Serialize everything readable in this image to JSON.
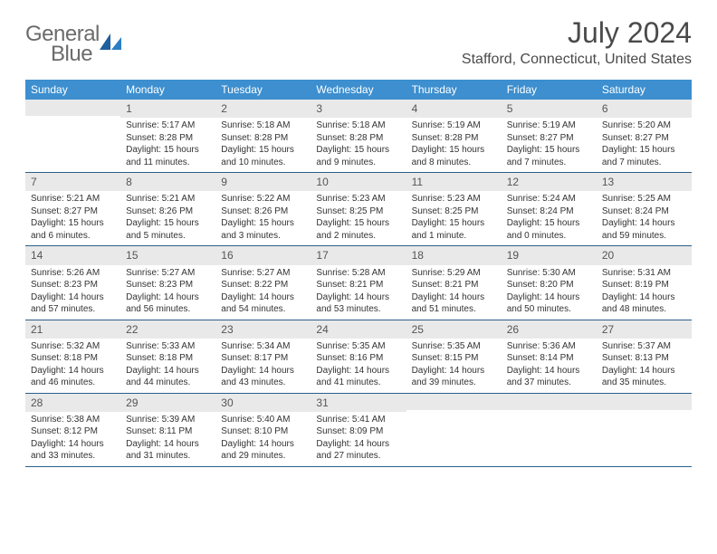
{
  "brand": {
    "part1": "General",
    "part2": "Blue"
  },
  "title": "July 2024",
  "location": "Stafford, Connecticut, United States",
  "colors": {
    "header_bg": "#3d8fcf",
    "daynum_bg": "#e9e9e9",
    "rule": "#2b5f8a",
    "text": "#333333",
    "logo_gray": "#6b6b6b",
    "logo_blue": "#2b7ec2"
  },
  "weekdays": [
    "Sunday",
    "Monday",
    "Tuesday",
    "Wednesday",
    "Thursday",
    "Friday",
    "Saturday"
  ],
  "start_offset": 1,
  "days": [
    {
      "n": "1",
      "sunrise": "5:17 AM",
      "sunset": "8:28 PM",
      "daylight": "15 hours and 11 minutes."
    },
    {
      "n": "2",
      "sunrise": "5:18 AM",
      "sunset": "8:28 PM",
      "daylight": "15 hours and 10 minutes."
    },
    {
      "n": "3",
      "sunrise": "5:18 AM",
      "sunset": "8:28 PM",
      "daylight": "15 hours and 9 minutes."
    },
    {
      "n": "4",
      "sunrise": "5:19 AM",
      "sunset": "8:28 PM",
      "daylight": "15 hours and 8 minutes."
    },
    {
      "n": "5",
      "sunrise": "5:19 AM",
      "sunset": "8:27 PM",
      "daylight": "15 hours and 7 minutes."
    },
    {
      "n": "6",
      "sunrise": "5:20 AM",
      "sunset": "8:27 PM",
      "daylight": "15 hours and 7 minutes."
    },
    {
      "n": "7",
      "sunrise": "5:21 AM",
      "sunset": "8:27 PM",
      "daylight": "15 hours and 6 minutes."
    },
    {
      "n": "8",
      "sunrise": "5:21 AM",
      "sunset": "8:26 PM",
      "daylight": "15 hours and 5 minutes."
    },
    {
      "n": "9",
      "sunrise": "5:22 AM",
      "sunset": "8:26 PM",
      "daylight": "15 hours and 3 minutes."
    },
    {
      "n": "10",
      "sunrise": "5:23 AM",
      "sunset": "8:25 PM",
      "daylight": "15 hours and 2 minutes."
    },
    {
      "n": "11",
      "sunrise": "5:23 AM",
      "sunset": "8:25 PM",
      "daylight": "15 hours and 1 minute."
    },
    {
      "n": "12",
      "sunrise": "5:24 AM",
      "sunset": "8:24 PM",
      "daylight": "15 hours and 0 minutes."
    },
    {
      "n": "13",
      "sunrise": "5:25 AM",
      "sunset": "8:24 PM",
      "daylight": "14 hours and 59 minutes."
    },
    {
      "n": "14",
      "sunrise": "5:26 AM",
      "sunset": "8:23 PM",
      "daylight": "14 hours and 57 minutes."
    },
    {
      "n": "15",
      "sunrise": "5:27 AM",
      "sunset": "8:23 PM",
      "daylight": "14 hours and 56 minutes."
    },
    {
      "n": "16",
      "sunrise": "5:27 AM",
      "sunset": "8:22 PM",
      "daylight": "14 hours and 54 minutes."
    },
    {
      "n": "17",
      "sunrise": "5:28 AM",
      "sunset": "8:21 PM",
      "daylight": "14 hours and 53 minutes."
    },
    {
      "n": "18",
      "sunrise": "5:29 AM",
      "sunset": "8:21 PM",
      "daylight": "14 hours and 51 minutes."
    },
    {
      "n": "19",
      "sunrise": "5:30 AM",
      "sunset": "8:20 PM",
      "daylight": "14 hours and 50 minutes."
    },
    {
      "n": "20",
      "sunrise": "5:31 AM",
      "sunset": "8:19 PM",
      "daylight": "14 hours and 48 minutes."
    },
    {
      "n": "21",
      "sunrise": "5:32 AM",
      "sunset": "8:18 PM",
      "daylight": "14 hours and 46 minutes."
    },
    {
      "n": "22",
      "sunrise": "5:33 AM",
      "sunset": "8:18 PM",
      "daylight": "14 hours and 44 minutes."
    },
    {
      "n": "23",
      "sunrise": "5:34 AM",
      "sunset": "8:17 PM",
      "daylight": "14 hours and 43 minutes."
    },
    {
      "n": "24",
      "sunrise": "5:35 AM",
      "sunset": "8:16 PM",
      "daylight": "14 hours and 41 minutes."
    },
    {
      "n": "25",
      "sunrise": "5:35 AM",
      "sunset": "8:15 PM",
      "daylight": "14 hours and 39 minutes."
    },
    {
      "n": "26",
      "sunrise": "5:36 AM",
      "sunset": "8:14 PM",
      "daylight": "14 hours and 37 minutes."
    },
    {
      "n": "27",
      "sunrise": "5:37 AM",
      "sunset": "8:13 PM",
      "daylight": "14 hours and 35 minutes."
    },
    {
      "n": "28",
      "sunrise": "5:38 AM",
      "sunset": "8:12 PM",
      "daylight": "14 hours and 33 minutes."
    },
    {
      "n": "29",
      "sunrise": "5:39 AM",
      "sunset": "8:11 PM",
      "daylight": "14 hours and 31 minutes."
    },
    {
      "n": "30",
      "sunrise": "5:40 AM",
      "sunset": "8:10 PM",
      "daylight": "14 hours and 29 minutes."
    },
    {
      "n": "31",
      "sunrise": "5:41 AM",
      "sunset": "8:09 PM",
      "daylight": "14 hours and 27 minutes."
    }
  ],
  "labels": {
    "sunrise": "Sunrise: ",
    "sunset": "Sunset: ",
    "daylight": "Daylight: "
  }
}
